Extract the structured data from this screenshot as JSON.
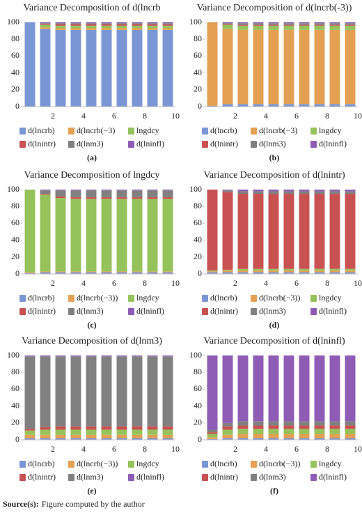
{
  "chart_data": [
    {
      "type": "bar",
      "stacked": true,
      "title": "Variance Decomposition of d(lncrb",
      "panel_label": "(a)",
      "categories": [
        null,
        2,
        null,
        4,
        null,
        6,
        null,
        8,
        null,
        10
      ],
      "ylim": [
        0,
        100
      ],
      "yticks": [
        0,
        20,
        40,
        60,
        80,
        100
      ],
      "series": [
        {
          "name": "d(lncrb)",
          "color": "#7b96d4",
          "values": [
            100,
            92,
            91,
            91,
            91,
            91,
            91,
            91,
            91,
            91
          ]
        },
        {
          "name": "d(lncrb(−3)",
          "color": "#e3a052",
          "values": [
            0,
            2,
            2,
            2,
            2,
            2,
            2,
            2,
            2,
            2
          ]
        },
        {
          "name": "lngdcy",
          "color": "#96c25c",
          "values": [
            0,
            3,
            3,
            3,
            3,
            3,
            3,
            3,
            3,
            3
          ]
        },
        {
          "name": "d(lnintr)",
          "color": "#c85252",
          "values": [
            0,
            1,
            1.5,
            1.5,
            1.5,
            1.5,
            1.5,
            1.5,
            1.5,
            1.5
          ]
        },
        {
          "name": "d(lnm3)",
          "color": "#808080",
          "values": [
            0,
            1,
            1.5,
            1.5,
            1.5,
            1.5,
            1.5,
            1.5,
            1.5,
            1.5
          ]
        },
        {
          "name": "d(lninfl)",
          "color": "#8e5cb5",
          "values": [
            0,
            1,
            1,
            1,
            1,
            1,
            1,
            1,
            1,
            1
          ]
        }
      ]
    },
    {
      "type": "bar",
      "stacked": true,
      "title": "Variance Decomposition of d(lncrb(-3))",
      "panel_label": "(b)",
      "categories": [
        null,
        2,
        null,
        4,
        null,
        6,
        null,
        8,
        null,
        10
      ],
      "ylim": [
        0,
        100
      ],
      "yticks": [
        0,
        20,
        40,
        60,
        80,
        100
      ],
      "series": [
        {
          "name": "d(lncrb)",
          "color": "#7b96d4",
          "values": [
            1,
            3,
            3,
            3,
            3,
            3,
            3,
            3,
            3,
            3
          ]
        },
        {
          "name": "d(lncrb(−3)",
          "color": "#e3a052",
          "values": [
            99,
            89,
            88,
            88,
            88,
            88,
            88,
            88,
            88,
            88
          ]
        },
        {
          "name": "lngdcy",
          "color": "#96c25c",
          "values": [
            0,
            5,
            5,
            5,
            5,
            5,
            5,
            5,
            5,
            5
          ]
        },
        {
          "name": "d(lnintr)",
          "color": "#c85252",
          "values": [
            0,
            1,
            1,
            1,
            1,
            1,
            1,
            1,
            1,
            1
          ]
        },
        {
          "name": "d(lnm3)",
          "color": "#808080",
          "values": [
            0,
            1,
            2,
            2,
            2,
            2,
            2,
            2,
            2,
            2
          ]
        },
        {
          "name": "d(lninfl)",
          "color": "#8e5cb5",
          "values": [
            0,
            1,
            1,
            1,
            1,
            1,
            1,
            1,
            1,
            1
          ]
        }
      ]
    },
    {
      "type": "bar",
      "stacked": true,
      "title": "Variance Decomposition of lngdcy",
      "panel_label": "(c)",
      "categories": [
        null,
        2,
        null,
        4,
        null,
        6,
        null,
        8,
        null,
        10
      ],
      "ylim": [
        0,
        100
      ],
      "yticks": [
        0,
        20,
        40,
        60,
        80,
        100
      ],
      "series": [
        {
          "name": "d(lncrb)",
          "color": "#7b96d4",
          "values": [
            1,
            2,
            2,
            2,
            2,
            2,
            2,
            2,
            2,
            2
          ]
        },
        {
          "name": "d(lncrb(−3))",
          "color": "#e3a052",
          "values": [
            1,
            1,
            1,
            1,
            1,
            1,
            1,
            1,
            1,
            1
          ]
        },
        {
          "name": "lngdcy",
          "color": "#96c25c",
          "values": [
            98,
            91,
            87,
            86,
            86,
            86,
            86,
            86,
            86,
            86
          ]
        },
        {
          "name": "d(lnintr)",
          "color": "#c85252",
          "values": [
            0,
            1,
            2,
            2,
            2,
            2,
            2,
            2,
            2,
            2
          ]
        },
        {
          "name": "d(lnm3)",
          "color": "#808080",
          "values": [
            0,
            4,
            7,
            8,
            8,
            8,
            8,
            8,
            8,
            8
          ]
        },
        {
          "name": "d(lninfl)",
          "color": "#8e5cb5",
          "values": [
            0,
            1,
            1,
            1,
            1,
            1,
            1,
            1,
            1,
            1
          ]
        }
      ]
    },
    {
      "type": "bar",
      "stacked": true,
      "title": "Variance Decomposition of d(lnintr)",
      "panel_label": "(d)",
      "categories": [
        null,
        2,
        null,
        4,
        null,
        6,
        null,
        8,
        null,
        10
      ],
      "ylim": [
        0,
        100
      ],
      "yticks": [
        0,
        20,
        40,
        60,
        80,
        100
      ],
      "series": [
        {
          "name": "d(lncrb)",
          "color": "#7b96d4",
          "values": [
            2,
            2,
            2,
            2,
            2,
            2,
            2,
            2,
            2,
            2
          ]
        },
        {
          "name": "d(lncrb(−3))",
          "color": "#e3a052",
          "values": [
            1,
            2,
            2,
            2,
            2,
            2,
            2,
            2,
            2,
            2
          ]
        },
        {
          "name": "lngdcy",
          "color": "#96c25c",
          "values": [
            1,
            1,
            2,
            2,
            2,
            2,
            2,
            2,
            2,
            2
          ]
        },
        {
          "name": "d(lnintr)",
          "color": "#c85252",
          "values": [
            96,
            92,
            89,
            89,
            89,
            89,
            89,
            89,
            89,
            89
          ]
        },
        {
          "name": "d(lnm3)",
          "color": "#808080",
          "values": [
            0,
            2,
            3,
            3,
            3,
            3,
            3,
            3,
            3,
            3
          ]
        },
        {
          "name": "d(lninfl)",
          "color": "#8e5cb5",
          "values": [
            0,
            1,
            2,
            2,
            2,
            2,
            2,
            2,
            2,
            2
          ]
        }
      ]
    },
    {
      "type": "bar",
      "stacked": true,
      "title": "Variance Decomposition of d(lnm3)",
      "panel_label": "(e)",
      "categories": [
        null,
        2,
        null,
        4,
        null,
        6,
        null,
        8,
        null,
        10
      ],
      "ylim": [
        0,
        100
      ],
      "yticks": [
        0,
        20,
        40,
        60,
        80,
        100
      ],
      "series": [
        {
          "name": "d(lncrb)",
          "color": "#7b96d4",
          "values": [
            2,
            2,
            2,
            2,
            2,
            2,
            2,
            2,
            2,
            2
          ]
        },
        {
          "name": "d(lncrb(−3))",
          "color": "#e3a052",
          "values": [
            4,
            4,
            4,
            4,
            4,
            4,
            4,
            4,
            4,
            4
          ]
        },
        {
          "name": "lngdcy",
          "color": "#96c25c",
          "values": [
            5,
            6,
            6,
            6,
            6,
            6,
            6,
            6,
            6,
            6
          ]
        },
        {
          "name": "d(lnintr)",
          "color": "#c85252",
          "values": [
            2,
            3,
            4,
            4,
            4,
            4,
            4,
            4,
            4,
            4
          ]
        },
        {
          "name": "d(lnm3)",
          "color": "#808080",
          "values": [
            86,
            84,
            83,
            83,
            83,
            83,
            83,
            83,
            83,
            83
          ]
        },
        {
          "name": "d(lninfl)",
          "color": "#8e5cb5",
          "values": [
            1,
            1,
            1,
            1,
            1,
            1,
            1,
            1,
            1,
            1
          ]
        }
      ]
    },
    {
      "type": "bar",
      "stacked": true,
      "title": "Variance Decomposition of d(lninfl)",
      "panel_label": "(f)",
      "categories": [
        null,
        2,
        null,
        4,
        null,
        6,
        null,
        8,
        null,
        10
      ],
      "ylim": [
        0,
        100
      ],
      "yticks": [
        0,
        20,
        40,
        60,
        80,
        100
      ],
      "series": [
        {
          "name": "d(lncrb)",
          "color": "#7b96d4",
          "values": [
            1,
            2,
            2,
            2,
            2,
            2,
            2,
            2,
            2,
            2
          ]
        },
        {
          "name": "d(lncrb(−3))",
          "color": "#e3a052",
          "values": [
            2,
            4,
            5,
            5,
            5,
            5,
            5,
            5,
            5,
            5
          ]
        },
        {
          "name": "lngdcy",
          "color": "#96c25c",
          "values": [
            4,
            6,
            6,
            6,
            6,
            6,
            6,
            6,
            6,
            6
          ]
        },
        {
          "name": "d(lnintr)",
          "color": "#c85252",
          "values": [
            2,
            4,
            4,
            4,
            4,
            4,
            4,
            4,
            4,
            4
          ]
        },
        {
          "name": "d(lnm3)",
          "color": "#808080",
          "values": [
            3,
            4,
            5,
            5,
            5,
            5,
            5,
            5,
            5,
            5
          ]
        },
        {
          "name": "d(lninfl)",
          "color": "#8e5cb5",
          "values": [
            88,
            80,
            78,
            78,
            78,
            78,
            78,
            78,
            78,
            78
          ]
        }
      ]
    }
  ],
  "source": {
    "label": "Source(s):",
    "text": "Figure computed by the author"
  }
}
